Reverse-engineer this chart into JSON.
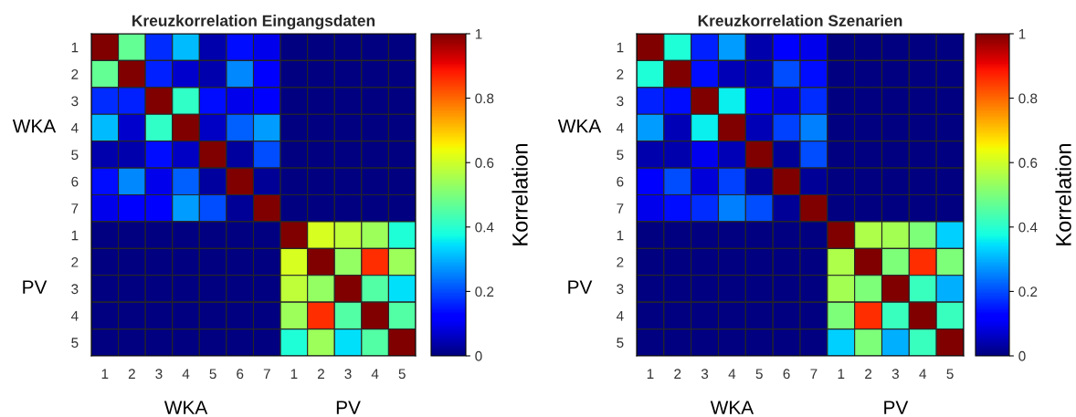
{
  "chart_data": [
    {
      "type": "heatmap",
      "title": "Kreuzkorrelation Eingangsdaten",
      "clabel": "Korrelation",
      "categories": [
        "1",
        "2",
        "3",
        "4",
        "5",
        "6",
        "7",
        "1",
        "2",
        "3",
        "4",
        "5"
      ],
      "y_categories": [
        "1",
        "2",
        "3",
        "4",
        "5",
        "6",
        "7",
        "1",
        "2",
        "3",
        "4",
        "5"
      ],
      "annotations": [
        "WKA",
        "PV",
        "WKA",
        "PV"
      ],
      "clim": [
        0,
        1
      ],
      "cticks": [
        0,
        0.2,
        0.4,
        0.6,
        0.8,
        1
      ],
      "cells": [
        [
          1,
          0.47,
          0.17,
          0.31,
          0.04,
          0.14,
          0.095,
          0,
          0,
          0,
          0,
          0
        ],
        [
          0.47,
          1,
          0.16,
          0.07,
          0.04,
          0.26,
          0.11,
          0,
          0,
          0,
          0,
          0
        ],
        [
          0.17,
          0.16,
          1,
          0.41,
          0.14,
          0.095,
          0.11,
          0,
          0,
          0,
          0,
          0
        ],
        [
          0.31,
          0.07,
          0.41,
          1,
          0.06,
          0.22,
          0.28,
          0,
          0,
          0,
          0,
          0
        ],
        [
          0.04,
          0.04,
          0.14,
          0.06,
          1,
          0.03,
          0.2,
          0,
          0,
          0,
          0,
          0
        ],
        [
          0.14,
          0.26,
          0.095,
          0.22,
          0.03,
          1,
          0.02,
          0,
          0,
          0,
          0,
          0
        ],
        [
          0.095,
          0.11,
          0.11,
          0.28,
          0.2,
          0.02,
          1,
          0,
          0,
          0,
          0,
          0
        ],
        [
          0,
          0,
          0,
          0,
          0,
          0,
          0,
          1,
          0.61,
          0.58,
          0.54,
          0.39
        ],
        [
          0,
          0,
          0,
          0,
          0,
          0,
          0,
          0.61,
          1,
          0.53,
          0.86,
          0.54
        ],
        [
          0,
          0,
          0,
          0,
          0,
          0,
          0,
          0.58,
          0.53,
          1,
          0.45,
          0.345
        ],
        [
          0,
          0,
          0,
          0,
          0,
          0,
          0,
          0.54,
          0.86,
          0.45,
          1,
          0.45
        ],
        [
          0,
          0,
          0,
          0,
          0,
          0,
          0,
          0.39,
          0.54,
          0.345,
          0.45,
          1
        ]
      ]
    },
    {
      "type": "heatmap",
      "title": "Kreuzkorrelation Szenarien",
      "clabel": "Korrelation",
      "categories": [
        "1",
        "2",
        "3",
        "4",
        "5",
        "6",
        "7",
        "1",
        "2",
        "3",
        "4",
        "5"
      ],
      "y_categories": [
        "1",
        "2",
        "3",
        "4",
        "5",
        "6",
        "7",
        "1",
        "2",
        "3",
        "4",
        "5"
      ],
      "annotations": [
        "WKA",
        "PV",
        "WKA",
        "PV"
      ],
      "clim": [
        0,
        1
      ],
      "cticks": [
        0,
        0.2,
        0.4,
        0.6,
        0.8,
        1
      ],
      "cells": [
        [
          1,
          0.39,
          0.16,
          0.28,
          0.04,
          0.12,
          0.095,
          0,
          0,
          0,
          0,
          0
        ],
        [
          0.39,
          1,
          0.14,
          0.05,
          0.04,
          0.2,
          0.14,
          0,
          0,
          0,
          0,
          0
        ],
        [
          0.16,
          0.14,
          1,
          0.36,
          0.1,
          0.08,
          0.17,
          0,
          0,
          0,
          0,
          0
        ],
        [
          0.28,
          0.05,
          0.36,
          1,
          0.05,
          0.19,
          0.25,
          0,
          0,
          0,
          0,
          0
        ],
        [
          0.04,
          0.04,
          0.1,
          0.05,
          1,
          0.02,
          0.2,
          0,
          0,
          0,
          0,
          0
        ],
        [
          0.12,
          0.2,
          0.08,
          0.19,
          0.02,
          1,
          0.02,
          0,
          0,
          0,
          0,
          0
        ],
        [
          0.095,
          0.14,
          0.17,
          0.25,
          0.2,
          0.02,
          1,
          0,
          0,
          0,
          0,
          0
        ],
        [
          0,
          0,
          0,
          0,
          0,
          0,
          0,
          1,
          0.56,
          0.55,
          0.5,
          0.33
        ],
        [
          0,
          0,
          0,
          0,
          0,
          0,
          0,
          0.56,
          1,
          0.5,
          0.86,
          0.5
        ],
        [
          0,
          0,
          0,
          0,
          0,
          0,
          0,
          0.55,
          0.5,
          1,
          0.42,
          0.3
        ],
        [
          0,
          0,
          0,
          0,
          0,
          0,
          0,
          0.5,
          0.86,
          0.42,
          1,
          0.42
        ],
        [
          0,
          0,
          0,
          0,
          0,
          0,
          0,
          0.33,
          0.5,
          0.3,
          0.42,
          1
        ]
      ]
    }
  ]
}
